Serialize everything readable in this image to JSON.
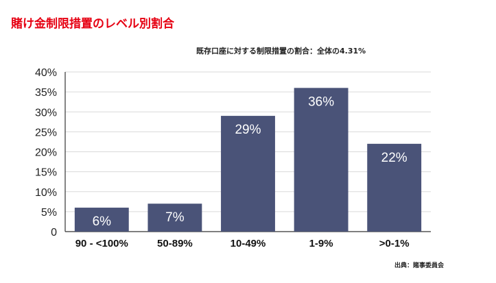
{
  "title": "賭け金制限措置のレベル別割合",
  "subtitle": "既存口座に対する制限措置の割合：全体の4.31%",
  "source": "出典：賭事委員会",
  "colors": {
    "title": "#e60012",
    "bar": "#4a5378",
    "grid": "#d9d9d9",
    "axis": "#333333"
  },
  "chart_data": {
    "type": "bar",
    "categories": [
      "90 - <100%",
      "50-89%",
      "10-49%",
      "1-9%",
      ">0-1%"
    ],
    "values": [
      6,
      7,
      29,
      36,
      22
    ],
    "data_labels": [
      "6%",
      "7%",
      "29%",
      "36%",
      "22%"
    ],
    "yticks": [
      "0",
      "5%",
      "10%",
      "15%",
      "20%",
      "25%",
      "30%",
      "35%",
      "40%"
    ],
    "ylim": [
      0,
      40
    ],
    "grid": true,
    "legend": false,
    "xlabel": "",
    "ylabel": ""
  }
}
